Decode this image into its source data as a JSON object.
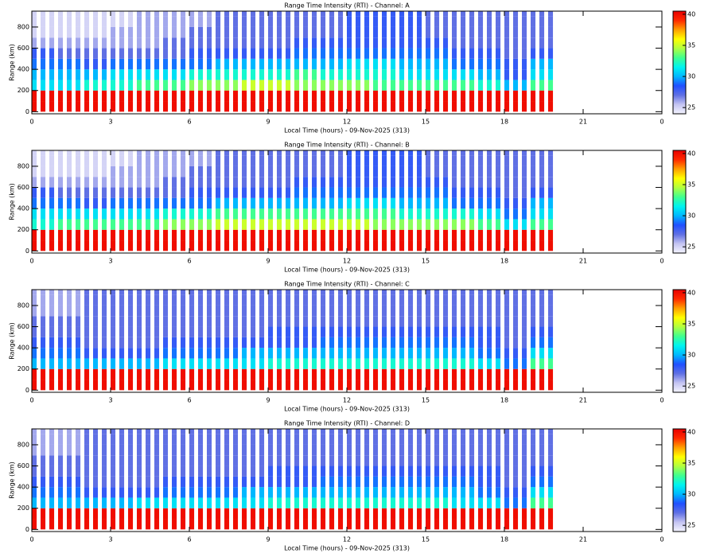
{
  "chart_data": [
    {
      "type": "heatmap",
      "title": "Range Time Intensity (RTI) - Channel: A",
      "xlabel": "Local Time (hours) - 09-Nov-2025 (313)",
      "ylabel": "Range (km)",
      "xlim": [
        0,
        24
      ],
      "xticks": [
        0,
        3,
        6,
        9,
        12,
        15,
        18,
        21,
        {
          "value": 24,
          "label": "0"
        }
      ],
      "ylim": [
        -20,
        950
      ],
      "yticks": [
        0,
        200,
        400,
        600,
        800
      ],
      "x": [
        0,
        1,
        2,
        3,
        4,
        5,
        6,
        7,
        8,
        9,
        10,
        11,
        12,
        13,
        14,
        15,
        16,
        17,
        18,
        19
      ],
      "y": [
        50,
        150,
        250,
        350,
        450,
        550,
        650,
        750,
        850,
        950
      ],
      "z": [
        [
          40,
          40,
          40,
          40,
          40,
          40,
          40,
          40,
          40,
          40,
          40,
          40,
          40,
          40,
          40,
          40,
          40,
          40,
          40,
          40
        ],
        [
          40,
          40,
          40,
          40,
          40,
          40,
          40,
          40,
          40,
          40,
          40,
          40,
          40,
          40,
          40,
          40,
          40,
          40,
          40,
          40
        ],
        [
          31,
          31,
          32,
          32,
          33,
          33,
          34,
          34,
          35,
          35,
          34,
          34,
          34,
          33,
          33,
          33,
          33,
          32,
          30,
          33
        ],
        [
          30,
          30,
          30,
          31,
          31,
          31,
          32,
          32,
          32,
          32,
          33,
          32,
          32,
          32,
          31,
          31,
          31,
          30,
          28,
          31
        ],
        [
          29,
          29,
          28,
          29,
          29,
          29,
          29,
          30,
          30,
          30,
          30,
          30,
          31,
          31,
          30,
          30,
          29,
          29,
          28,
          30
        ],
        [
          28,
          27,
          27,
          27,
          27,
          27,
          28,
          28,
          28,
          28,
          29,
          29,
          29,
          29,
          29,
          29,
          28,
          28,
          27,
          28
        ],
        [
          26,
          26,
          26,
          26,
          26,
          27,
          27,
          27,
          27,
          27,
          28,
          28,
          28,
          28,
          28,
          28,
          27,
          27,
          27,
          27
        ],
        [
          25,
          25,
          25,
          26,
          26,
          26,
          27,
          27,
          27,
          27,
          27,
          27,
          28,
          28,
          28,
          27,
          27,
          27,
          27,
          27
        ],
        [
          25,
          25,
          25,
          25,
          26,
          26,
          26,
          27,
          27,
          27,
          27,
          27,
          28,
          28,
          28,
          27,
          27,
          27,
          27,
          27
        ],
        [
          25,
          25,
          25,
          25,
          26,
          26,
          26,
          27,
          27,
          27,
          27,
          27,
          28,
          28,
          28,
          27,
          27,
          27,
          27,
          27
        ]
      ],
      "colorbar": {
        "zlim": [
          24,
          40.5
        ],
        "ticks": [
          25,
          30,
          35,
          40
        ],
        "colors": [
          "#f4f4ff",
          "#c4c4f2",
          "#6070e4",
          "#2050ff",
          "#00b8ff",
          "#00f4f0",
          "#40ff90",
          "#b0ff40",
          "#ffff00",
          "#ffa000",
          "#ff2a00",
          "#e80000"
        ]
      }
    },
    {
      "type": "heatmap",
      "title": "Range Time Intensity (RTI) - Channel: B",
      "xlabel": "Local Time (hours) - 09-Nov-2025 (313)",
      "ylabel": "Range (km)",
      "xlim": [
        0,
        24
      ],
      "xticks": [
        0,
        3,
        6,
        9,
        12,
        15,
        18,
        21,
        {
          "value": 24,
          "label": "0"
        }
      ],
      "ylim": [
        -20,
        950
      ],
      "yticks": [
        0,
        200,
        400,
        600,
        800
      ],
      "x": [
        0,
        1,
        2,
        3,
        4,
        5,
        6,
        7,
        8,
        9,
        10,
        11,
        12,
        13,
        14,
        15,
        16,
        17,
        18,
        19
      ],
      "y": [
        50,
        150,
        250,
        350,
        450,
        550,
        650,
        750,
        850,
        950
      ],
      "z": [
        [
          40,
          40,
          40,
          40,
          40,
          40,
          40,
          40,
          40,
          40,
          40,
          40,
          40,
          40,
          40,
          40,
          40,
          40,
          40,
          40
        ],
        [
          40,
          40,
          40,
          40,
          40,
          40,
          40,
          40,
          40,
          40,
          40,
          40,
          40,
          40,
          40,
          40,
          40,
          40,
          40,
          40
        ],
        [
          32,
          33,
          33,
          33,
          33,
          34,
          34,
          35,
          35,
          35,
          35,
          35,
          35,
          34,
          34,
          34,
          34,
          33,
          31,
          33
        ],
        [
          31,
          31,
          31,
          31,
          31,
          32,
          32,
          33,
          33,
          33,
          33,
          33,
          33,
          33,
          32,
          32,
          32,
          31,
          29,
          31
        ],
        [
          29,
          29,
          28,
          29,
          29,
          29,
          29,
          30,
          30,
          30,
          30,
          30,
          31,
          31,
          30,
          30,
          29,
          29,
          28,
          30
        ],
        [
          28,
          27,
          27,
          27,
          27,
          27,
          28,
          28,
          28,
          28,
          29,
          29,
          29,
          29,
          29,
          29,
          28,
          28,
          27,
          28
        ],
        [
          26,
          26,
          26,
          26,
          26,
          27,
          27,
          27,
          27,
          27,
          28,
          28,
          28,
          28,
          28,
          28,
          27,
          27,
          27,
          27
        ],
        [
          25,
          25,
          25,
          26,
          26,
          26,
          27,
          27,
          27,
          27,
          27,
          27,
          28,
          28,
          28,
          27,
          27,
          27,
          27,
          27
        ],
        [
          25,
          25,
          25,
          25,
          26,
          26,
          26,
          27,
          27,
          27,
          27,
          27,
          28,
          28,
          28,
          27,
          27,
          27,
          27,
          27
        ],
        [
          25,
          25,
          25,
          25,
          26,
          26,
          26,
          27,
          27,
          27,
          27,
          27,
          28,
          28,
          28,
          27,
          27,
          27,
          27,
          27
        ]
      ],
      "colorbar": {
        "zlim": [
          24,
          40.5
        ],
        "ticks": [
          25,
          30,
          35,
          40
        ],
        "colors": [
          "#f4f4ff",
          "#c4c4f2",
          "#6070e4",
          "#2050ff",
          "#00b8ff",
          "#00f4f0",
          "#40ff90",
          "#b0ff40",
          "#ffff00",
          "#ffa000",
          "#ff2a00",
          "#e80000"
        ]
      }
    },
    {
      "type": "heatmap",
      "title": "Range Time Intensity (RTI) - Channel: C",
      "xlabel": "Local Time (hours) - 09-Nov-2025 (313)",
      "ylabel": "Range (km)",
      "xlim": [
        0,
        24
      ],
      "xticks": [
        0,
        3,
        6,
        9,
        12,
        15,
        18,
        21,
        {
          "value": 24,
          "label": "0"
        }
      ],
      "ylim": [
        -20,
        950
      ],
      "yticks": [
        0,
        200,
        400,
        600,
        800
      ],
      "x": [
        0,
        1,
        2,
        3,
        4,
        5,
        6,
        7,
        8,
        9,
        10,
        11,
        12,
        13,
        14,
        15,
        16,
        17,
        18,
        19
      ],
      "y": [
        50,
        150,
        250,
        350,
        450,
        550,
        650,
        750,
        850,
        950
      ],
      "z": [
        [
          40,
          40,
          40,
          40,
          40,
          40,
          40,
          40,
          40,
          40,
          40,
          40,
          40,
          40,
          40,
          40,
          40,
          40,
          40,
          40
        ],
        [
          40,
          40,
          40,
          40,
          40,
          40,
          40,
          40,
          40,
          40,
          40,
          40,
          40,
          40,
          40,
          40,
          40,
          40,
          40,
          40
        ],
        [
          30,
          30,
          30,
          30,
          30,
          31,
          31,
          31,
          31,
          32,
          32,
          32,
          32,
          32,
          32,
          32,
          32,
          31,
          29,
          33
        ],
        [
          29,
          29,
          28,
          28,
          28,
          29,
          29,
          29,
          30,
          30,
          30,
          30,
          30,
          30,
          30,
          30,
          30,
          29,
          28,
          31
        ],
        [
          28,
          28,
          27,
          27,
          27,
          28,
          28,
          28,
          28,
          28,
          28,
          29,
          29,
          29,
          29,
          29,
          29,
          28,
          27,
          29
        ],
        [
          27,
          27,
          27,
          27,
          27,
          27,
          27,
          27,
          27,
          28,
          28,
          28,
          28,
          28,
          28,
          28,
          28,
          28,
          27,
          28
        ],
        [
          27,
          27,
          27,
          27,
          27,
          27,
          27,
          27,
          27,
          27,
          27,
          27,
          27,
          27,
          27,
          27,
          27,
          27,
          27,
          27
        ],
        [
          26,
          26,
          27,
          27,
          27,
          27,
          27,
          27,
          27,
          27,
          27,
          27,
          27,
          27,
          27,
          27,
          27,
          27,
          27,
          27
        ],
        [
          26,
          26,
          27,
          27,
          27,
          27,
          27,
          27,
          27,
          27,
          27,
          27,
          27,
          27,
          27,
          27,
          27,
          27,
          27,
          27
        ],
        [
          26,
          26,
          27,
          27,
          27,
          27,
          27,
          27,
          27,
          27,
          27,
          27,
          27,
          27,
          27,
          27,
          27,
          27,
          27,
          27
        ]
      ],
      "colorbar": {
        "zlim": [
          24,
          40.5
        ],
        "ticks": [
          25,
          30,
          35,
          40
        ],
        "colors": [
          "#f4f4ff",
          "#c4c4f2",
          "#6070e4",
          "#2050ff",
          "#00b8ff",
          "#00f4f0",
          "#40ff90",
          "#b0ff40",
          "#ffff00",
          "#ffa000",
          "#ff2a00",
          "#e80000"
        ]
      }
    },
    {
      "type": "heatmap",
      "title": "Range Time Intensity (RTI) - Channel: D",
      "xlabel": "Local Time (hours) - 09-Nov-2025 (313)",
      "ylabel": "Range (km)",
      "xlim": [
        0,
        24
      ],
      "xticks": [
        0,
        3,
        6,
        9,
        12,
        15,
        18,
        21,
        {
          "value": 24,
          "label": "0"
        }
      ],
      "ylim": [
        -20,
        950
      ],
      "yticks": [
        0,
        200,
        400,
        600,
        800
      ],
      "x": [
        0,
        1,
        2,
        3,
        4,
        5,
        6,
        7,
        8,
        9,
        10,
        11,
        12,
        13,
        14,
        15,
        16,
        17,
        18,
        19
      ],
      "y": [
        50,
        150,
        250,
        350,
        450,
        550,
        650,
        750,
        850,
        950
      ],
      "z": [
        [
          40,
          40,
          40,
          40,
          40,
          40,
          40,
          40,
          40,
          40,
          40,
          40,
          40,
          40,
          40,
          40,
          40,
          40,
          40,
          40
        ],
        [
          40,
          40,
          40,
          40,
          40,
          40,
          40,
          40,
          40,
          40,
          40,
          40,
          40,
          40,
          40,
          40,
          40,
          40,
          40,
          40
        ],
        [
          30,
          30,
          30,
          30,
          31,
          31,
          31,
          31,
          31,
          32,
          32,
          32,
          32,
          32,
          32,
          32,
          31,
          31,
          29,
          33
        ],
        [
          29,
          29,
          28,
          28,
          28,
          29,
          29,
          29,
          30,
          30,
          30,
          30,
          30,
          30,
          30,
          30,
          30,
          29,
          28,
          31
        ],
        [
          28,
          28,
          27,
          27,
          27,
          28,
          28,
          28,
          28,
          28,
          28,
          29,
          29,
          29,
          29,
          29,
          29,
          28,
          27,
          29
        ],
        [
          27,
          27,
          27,
          27,
          27,
          27,
          27,
          27,
          27,
          28,
          28,
          28,
          28,
          28,
          28,
          28,
          28,
          28,
          27,
          28
        ],
        [
          27,
          27,
          27,
          27,
          27,
          27,
          27,
          27,
          27,
          27,
          27,
          27,
          27,
          27,
          27,
          27,
          27,
          27,
          27,
          27
        ],
        [
          26,
          26,
          27,
          27,
          27,
          27,
          27,
          27,
          27,
          27,
          27,
          27,
          27,
          27,
          27,
          27,
          27,
          27,
          27,
          27
        ],
        [
          26,
          26,
          27,
          27,
          27,
          27,
          27,
          27,
          27,
          27,
          27,
          27,
          27,
          27,
          27,
          27,
          27,
          27,
          27,
          27
        ],
        [
          26,
          26,
          27,
          27,
          27,
          27,
          27,
          27,
          27,
          27,
          27,
          27,
          27,
          27,
          27,
          27,
          27,
          27,
          27,
          27
        ]
      ],
      "colorbar": {
        "zlim": [
          24,
          40.5
        ],
        "ticks": [
          25,
          30,
          35,
          40
        ],
        "colors": [
          "#f4f4ff",
          "#c4c4f2",
          "#6070e4",
          "#2050ff",
          "#00b8ff",
          "#00f4f0",
          "#40ff90",
          "#b0ff40",
          "#ffff00",
          "#ffa000",
          "#ff2a00",
          "#e80000"
        ]
      }
    }
  ]
}
